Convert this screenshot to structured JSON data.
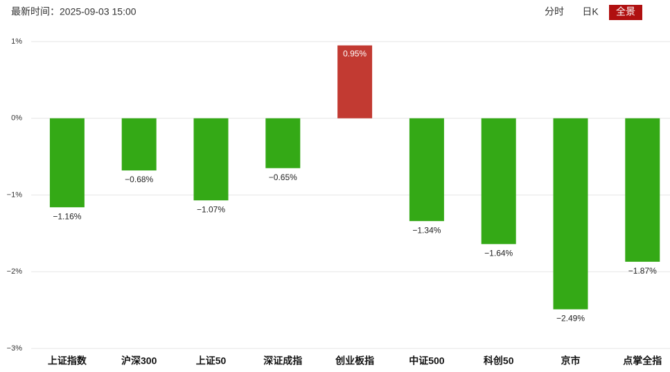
{
  "header": {
    "time_label": "最新时间：2025-09-03 15:00",
    "tabs": [
      "分时",
      "日K",
      "全景"
    ],
    "active_tab": 2
  },
  "chart_data": {
    "type": "bar",
    "categories": [
      "上证指数",
      "沪深300",
      "上证50",
      "深证成指",
      "创业板指",
      "中证500",
      "科创50",
      "京市",
      "点掌全指"
    ],
    "values": [
      -1.16,
      -0.68,
      -1.07,
      -0.65,
      0.95,
      -1.34,
      -1.64,
      -2.49,
      -1.87
    ],
    "value_labels": [
      "−1.16%",
      "−0.68%",
      "−1.07%",
      "−0.65%",
      "0.95%",
      "−1.34%",
      "−1.64%",
      "−2.49%",
      "−1.87%"
    ],
    "colors": {
      "positive": "#c23a32",
      "negative": "#34a916"
    },
    "ylim": [
      -3,
      1
    ],
    "yticks": [
      {
        "value": 1,
        "label": "1%"
      },
      {
        "value": 0,
        "label": "0%"
      },
      {
        "value": -1,
        "label": "−1%"
      },
      {
        "value": -2,
        "label": "−2%"
      },
      {
        "value": -3,
        "label": "−3%"
      }
    ],
    "grid": true
  }
}
